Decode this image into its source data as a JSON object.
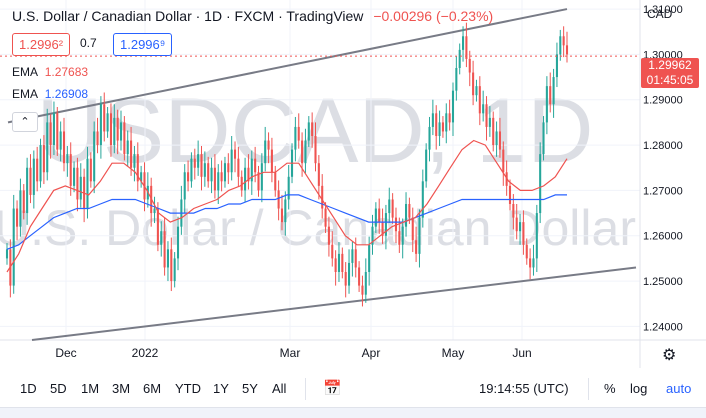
{
  "header": {
    "title": "U.S. Dollar / Canadian Dollar · 1D · FXCM · TradingView",
    "change": "−0.00296 (−0.23%)"
  },
  "quote": {
    "bid": "1.2996²",
    "spread": "0.7",
    "ask": "1.2996⁹"
  },
  "indicators": [
    {
      "label": "EMA",
      "value": "1.27683",
      "color": "#ef5350"
    },
    {
      "label": "EMA",
      "value": "1.26908",
      "color": "#2962ff"
    }
  ],
  "collapse_icon": "chevron-up-icon",
  "currency": "CAD",
  "last_price": {
    "value": "1.29962",
    "countdown": "01:45:05",
    "color": "#ef5350"
  },
  "watermark": {
    "symbol": "USDCAD, 1D",
    "name": "U.S. Dollar / Canadian Dollar"
  },
  "toolbar": {
    "ranges": [
      "1D",
      "5D",
      "1M",
      "3M",
      "6M",
      "YTD",
      "1Y",
      "5Y",
      "All"
    ],
    "goto_icon": "calendar-goto-icon",
    "time": "19:14:55 (UTC)",
    "percent": "%",
    "log": "log",
    "auto": "auto"
  },
  "settings_icon": "gear-icon",
  "colors": {
    "up": "#26a69a",
    "down": "#ef5350",
    "ema_fast": "#ef5350",
    "ema_slow": "#2962ff",
    "channel": "#787b86"
  },
  "chart_data": {
    "type": "candlestick",
    "y_ticks": [
      "1.31000",
      "1.30000",
      "1.29000",
      "1.28000",
      "1.27000",
      "1.26000",
      "1.25000",
      "1.24000"
    ],
    "x_ticks": [
      "Dec",
      "2022",
      "Mar",
      "Apr",
      "May",
      "Jun"
    ],
    "ylim": [
      1.237,
      1.312
    ],
    "candles": [
      1.257,
      1.249,
      1.266,
      1.262,
      1.27,
      1.265,
      1.275,
      1.269,
      1.277,
      1.272,
      1.28,
      1.274,
      1.285,
      1.28,
      1.287,
      1.279,
      1.283,
      1.276,
      1.278,
      1.271,
      1.275,
      1.268,
      1.273,
      1.266,
      1.277,
      1.272,
      1.283,
      1.28,
      1.289,
      1.283,
      1.287,
      1.28,
      1.286,
      1.281,
      1.285,
      1.278,
      1.281,
      1.275,
      1.278,
      1.272,
      1.274,
      1.268,
      1.271,
      1.265,
      1.266,
      1.258,
      1.261,
      1.253,
      1.257,
      1.25,
      1.255,
      1.262,
      1.268,
      1.274,
      1.272,
      1.277,
      1.275,
      1.278,
      1.273,
      1.276,
      1.272,
      1.275,
      1.27,
      1.274,
      1.272,
      1.276,
      1.274,
      1.279,
      1.277,
      1.273,
      1.27,
      1.275,
      1.272,
      1.277,
      1.274,
      1.27,
      1.276,
      1.281,
      1.279,
      1.274,
      1.27,
      1.266,
      1.263,
      1.268,
      1.273,
      1.279,
      1.284,
      1.281,
      1.276,
      1.281,
      1.285,
      1.282,
      1.276,
      1.271,
      1.266,
      1.262,
      1.258,
      1.255,
      1.252,
      1.256,
      1.252,
      1.249,
      1.254,
      1.257,
      1.253,
      1.249,
      1.247,
      1.252,
      1.258,
      1.262,
      1.266,
      1.263,
      1.26,
      1.265,
      1.268,
      1.264,
      1.261,
      1.258,
      1.262,
      1.267,
      1.264,
      1.259,
      1.256,
      1.264,
      1.272,
      1.279,
      1.284,
      1.287,
      1.282,
      1.285,
      1.283,
      1.287,
      1.285,
      1.292,
      1.297,
      1.301,
      1.304,
      1.299,
      1.296,
      1.291,
      1.293,
      1.287,
      1.289,
      1.284,
      1.286,
      1.28,
      1.283,
      1.279,
      1.274,
      1.271,
      1.267,
      1.264,
      1.261,
      1.263,
      1.258,
      1.255,
      1.253,
      1.255,
      1.265,
      1.278,
      1.285,
      1.293,
      1.289,
      1.295,
      1.3,
      1.304,
      1.302,
      1.3
    ],
    "ema_fast": [
      1.252,
      1.256,
      1.262,
      1.266,
      1.27,
      1.271,
      1.27,
      1.269,
      1.272,
      1.276,
      1.276,
      1.274,
      1.27,
      1.265,
      1.263,
      1.264,
      1.266,
      1.267,
      1.268,
      1.27,
      1.271,
      1.273,
      1.274,
      1.274,
      1.276,
      1.276,
      1.272,
      1.268,
      1.264,
      1.26,
      1.258,
      1.258,
      1.26,
      1.262,
      1.263,
      1.264,
      1.267,
      1.271,
      1.275,
      1.279,
      1.281,
      1.28,
      1.276,
      1.272,
      1.27,
      1.27,
      1.271,
      1.273,
      1.277
    ],
    "ema_slow": [
      1.257,
      1.258,
      1.26,
      1.262,
      1.264,
      1.265,
      1.266,
      1.266,
      1.267,
      1.268,
      1.268,
      1.268,
      1.267,
      1.266,
      1.265,
      1.265,
      1.265,
      1.266,
      1.266,
      1.267,
      1.267,
      1.268,
      1.268,
      1.268,
      1.269,
      1.269,
      1.268,
      1.267,
      1.266,
      1.265,
      1.264,
      1.263,
      1.263,
      1.263,
      1.263,
      1.264,
      1.265,
      1.266,
      1.267,
      1.268,
      1.268,
      1.268,
      1.268,
      1.268,
      1.268,
      1.268,
      1.268,
      1.269,
      1.269
    ],
    "channel": {
      "upper": [
        {
          "x": "Nov 22",
          "y": 1.285
        },
        {
          "x": "Jun 17",
          "y": 1.31
        }
      ],
      "lower": [
        {
          "x": "Nov 22",
          "y": 1.237
        },
        {
          "x": "Jun 30",
          "y": 1.253
        }
      ]
    }
  }
}
